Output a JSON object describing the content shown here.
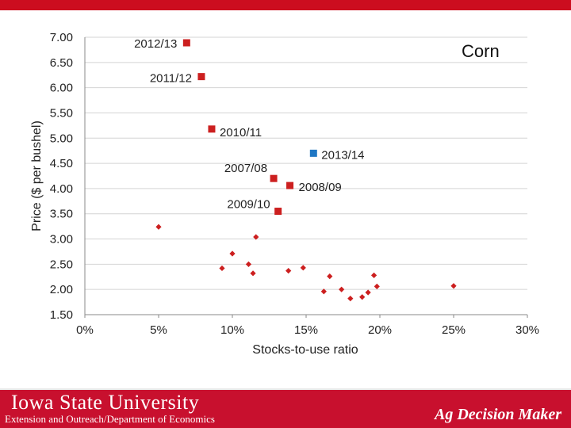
{
  "chart_data": {
    "type": "scatter",
    "title": "Corn",
    "xlabel": "Stocks-to-use ratio",
    "ylabel": "Price ($ per bushel)",
    "xlim": [
      0,
      30
    ],
    "ylim": [
      1.5,
      7.0
    ],
    "x_ticks": [
      "0%",
      "5%",
      "10%",
      "15%",
      "20%",
      "25%",
      "30%"
    ],
    "y_ticks": [
      "1.50",
      "2.00",
      "2.50",
      "3.00",
      "3.50",
      "4.00",
      "4.50",
      "5.00",
      "5.50",
      "6.00",
      "6.50",
      "7.00"
    ],
    "grid": "horizontal",
    "colors": {
      "history": "#cc1f1f",
      "current": "#1f77c4"
    },
    "labeled_points": [
      {
        "label": "2012/13",
        "x": 6.9,
        "y": 6.89,
        "color": "#cc1f1f"
      },
      {
        "label": "2011/12",
        "x": 7.9,
        "y": 6.22,
        "color": "#cc1f1f"
      },
      {
        "label": "2010/11",
        "x": 8.6,
        "y": 5.18,
        "color": "#cc1f1f"
      },
      {
        "label": "2013/14",
        "x": 15.5,
        "y": 4.7,
        "color": "#1f77c4"
      },
      {
        "label": "2007/08",
        "x": 12.8,
        "y": 4.2,
        "color": "#cc1f1f"
      },
      {
        "label": "2008/09",
        "x": 13.9,
        "y": 4.06,
        "color": "#cc1f1f"
      },
      {
        "label": "2009/10",
        "x": 13.1,
        "y": 3.55,
        "color": "#cc1f1f"
      }
    ],
    "points": [
      {
        "x": 5.0,
        "y": 3.24
      },
      {
        "x": 9.3,
        "y": 2.42
      },
      {
        "x": 10.0,
        "y": 2.71
      },
      {
        "x": 11.1,
        "y": 2.5
      },
      {
        "x": 11.4,
        "y": 2.32
      },
      {
        "x": 11.6,
        "y": 3.04
      },
      {
        "x": 13.8,
        "y": 2.37
      },
      {
        "x": 14.8,
        "y": 2.43
      },
      {
        "x": 16.2,
        "y": 1.96
      },
      {
        "x": 16.6,
        "y": 2.26
      },
      {
        "x": 17.4,
        "y": 2.0
      },
      {
        "x": 18.0,
        "y": 1.82
      },
      {
        "x": 18.8,
        "y": 1.85
      },
      {
        "x": 19.2,
        "y": 1.94
      },
      {
        "x": 19.6,
        "y": 2.28
      },
      {
        "x": 19.8,
        "y": 2.06
      },
      {
        "x": 25.0,
        "y": 2.07
      }
    ]
  },
  "footer": {
    "university": "Iowa State University",
    "department": "Extension and Outreach/Department of Economics",
    "product": "Ag Decision Maker"
  }
}
